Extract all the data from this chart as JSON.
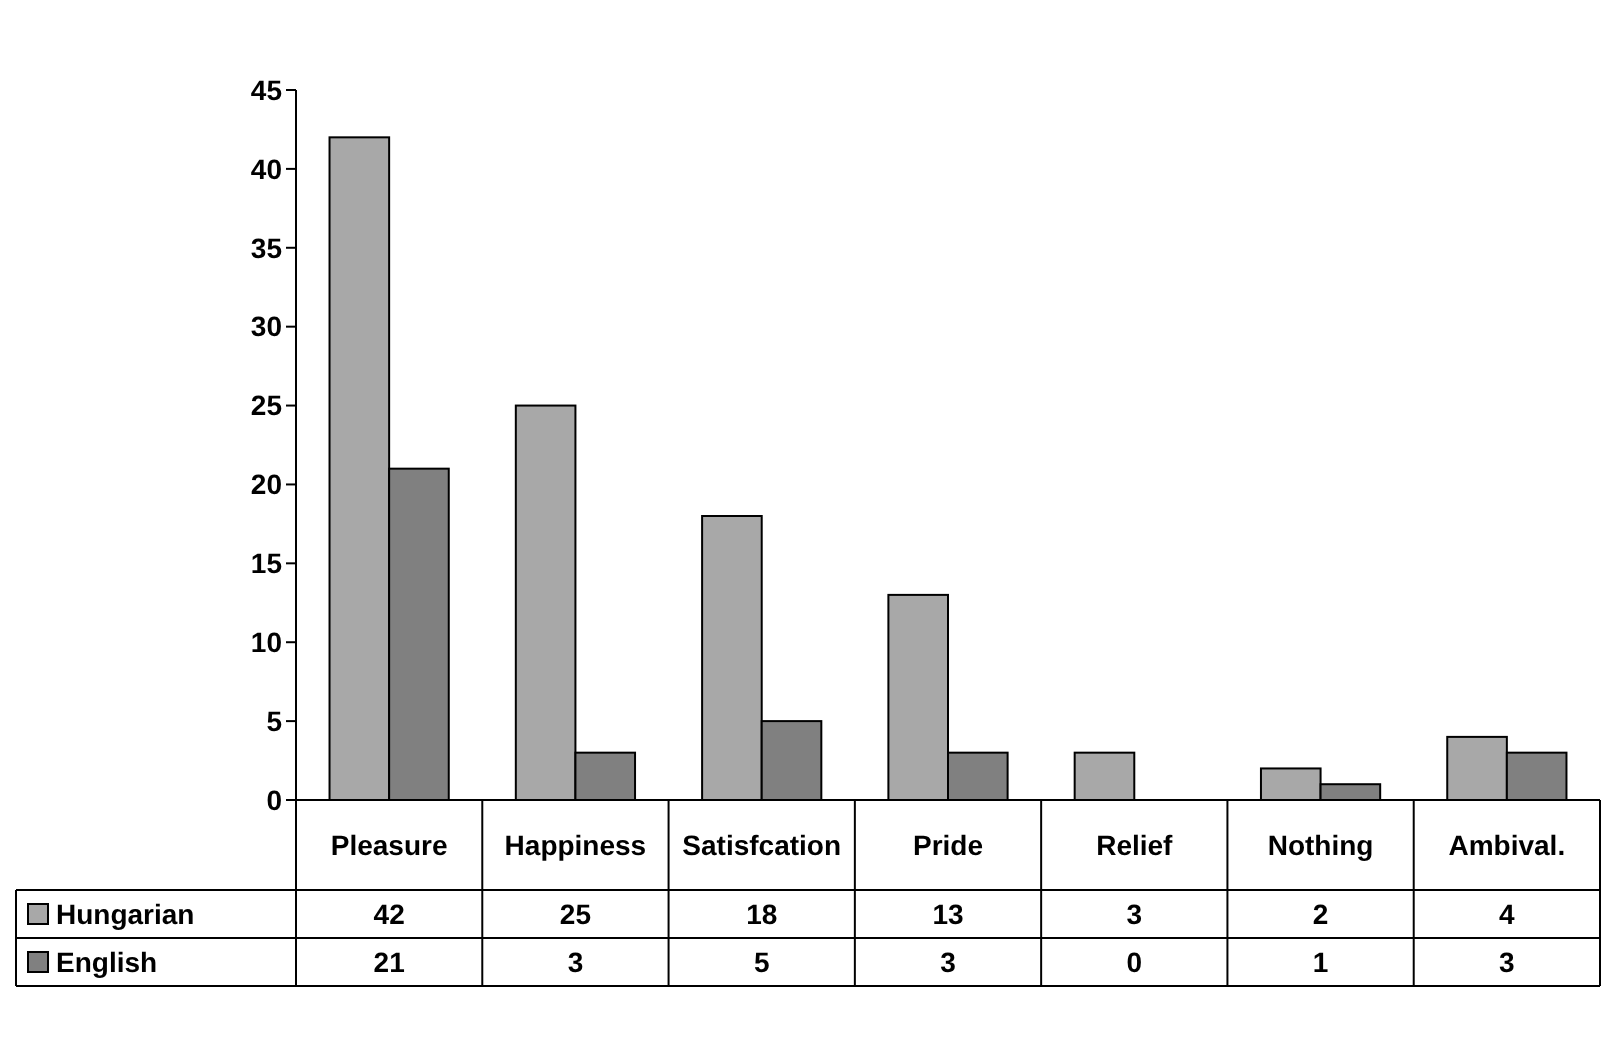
{
  "chart_data": {
    "type": "bar",
    "categories": [
      "Pleasure",
      "Happiness",
      "Satisfcation",
      "Pride",
      "Relief",
      "Nothing",
      "Ambival."
    ],
    "series": [
      {
        "name": "Hungarian",
        "color": "#a8a8a8",
        "values": [
          42,
          25,
          18,
          13,
          3,
          2,
          4
        ]
      },
      {
        "name": "English",
        "color": "#808080",
        "values": [
          21,
          3,
          5,
          3,
          0,
          1,
          3
        ]
      }
    ],
    "ylim": [
      0,
      45
    ],
    "yticks": [
      0,
      5,
      10,
      15,
      20,
      25,
      30,
      35,
      40,
      45
    ],
    "grid": false,
    "legend": "bottom left",
    "data_labels": true
  }
}
